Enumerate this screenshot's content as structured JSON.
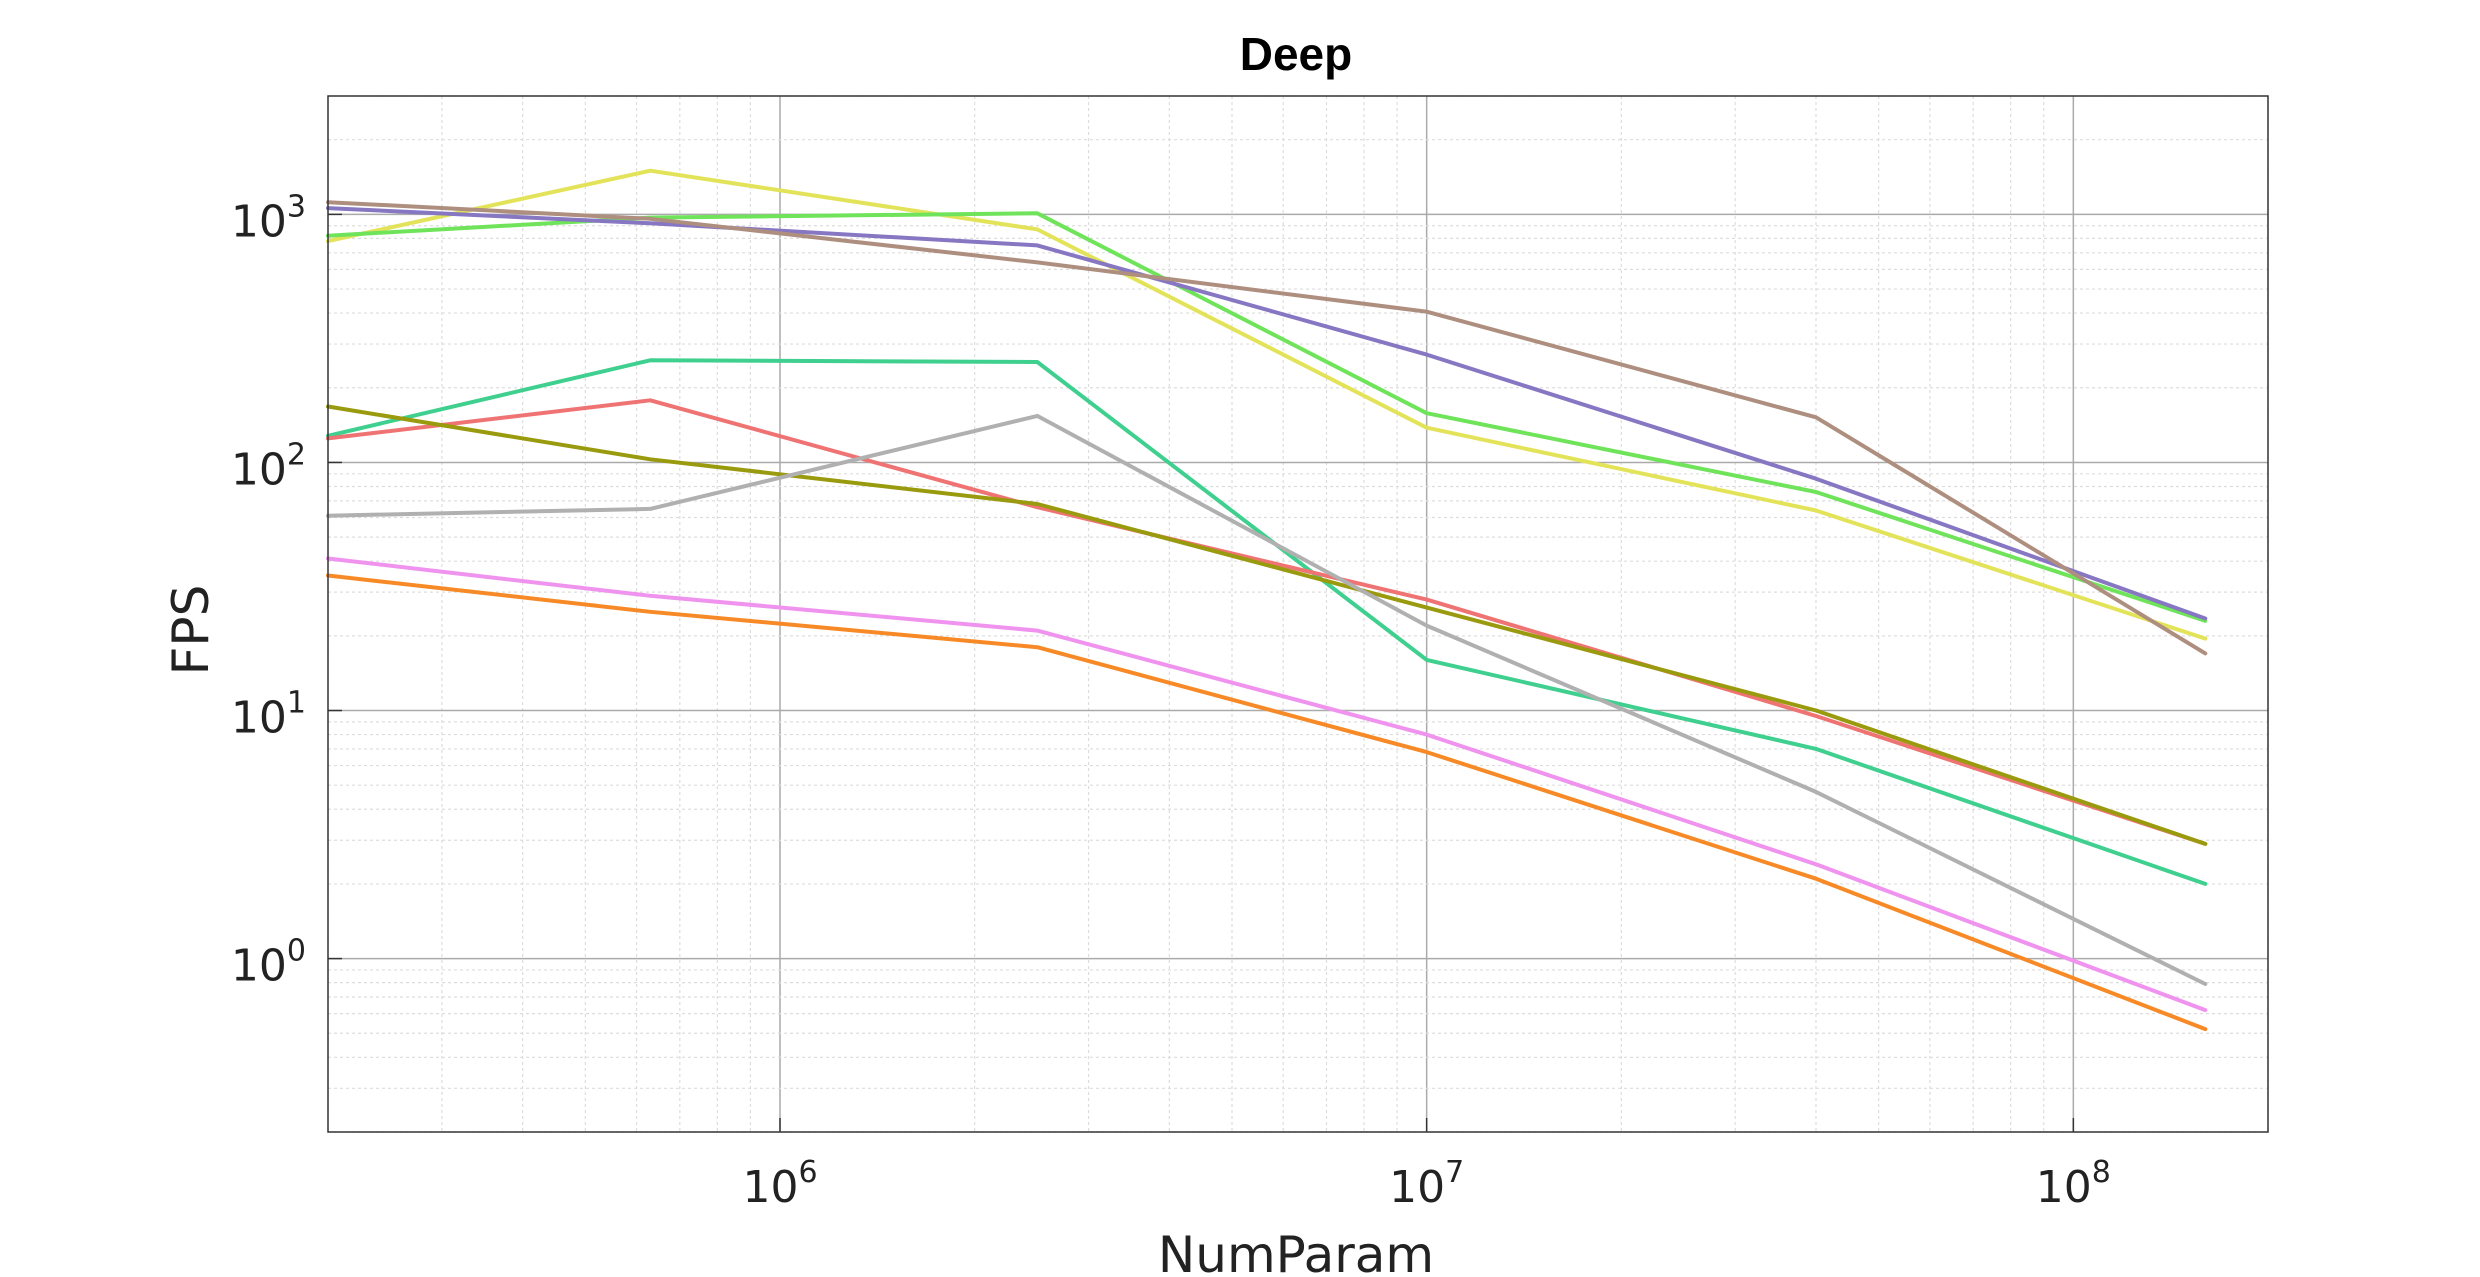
{
  "chart_data": {
    "type": "line",
    "title": "Deep",
    "xlabel": "NumParam",
    "ylabel": "FPS",
    "xscale": "log",
    "yscale": "log",
    "xlim": [
      200000,
      200000000
    ],
    "ylim": [
      0.2,
      3000
    ],
    "grid": true,
    "x_ticks": [
      {
        "base": "10",
        "exp": "6"
      },
      {
        "base": "10",
        "exp": "7"
      },
      {
        "base": "10",
        "exp": "8"
      }
    ],
    "y_ticks": [
      {
        "base": "10",
        "exp": "0"
      },
      {
        "base": "10",
        "exp": "1"
      },
      {
        "base": "10",
        "exp": "2"
      },
      {
        "base": "10",
        "exp": "3"
      }
    ],
    "x": [
      200000,
      630000,
      2500000,
      10000000,
      40000000,
      160000000
    ],
    "series": [
      {
        "color": "#e3e35a",
        "values": [
          780,
          1500,
          870,
          138,
          64,
          19.5
        ]
      },
      {
        "color": "#6fe35a",
        "values": [
          820,
          970,
          1010,
          158,
          76,
          23
        ]
      },
      {
        "color": "#8777c3",
        "values": [
          1060,
          920,
          750,
          272,
          86,
          23.5
        ]
      },
      {
        "color": "#ae8f7f",
        "values": [
          1120,
          960,
          640,
          405,
          152,
          17
        ]
      },
      {
        "color": "#3fcf8e",
        "values": [
          128,
          258,
          254,
          16,
          7,
          2
        ]
      },
      {
        "color": "#f07373",
        "values": [
          125,
          178,
          66,
          28,
          9.5,
          2.9
        ]
      },
      {
        "color": "#999a0d",
        "values": [
          168,
          103,
          68,
          26,
          10,
          2.9
        ]
      },
      {
        "color": "#b0b0b0",
        "values": [
          61,
          65,
          154,
          22,
          4.7,
          0.79
        ]
      },
      {
        "color": "#ef93ef",
        "values": [
          41,
          29,
          21,
          8,
          2.4,
          0.62
        ]
      },
      {
        "color": "#f78a26",
        "values": [
          35,
          25,
          18,
          6.8,
          2.1,
          0.52
        ]
      }
    ]
  }
}
